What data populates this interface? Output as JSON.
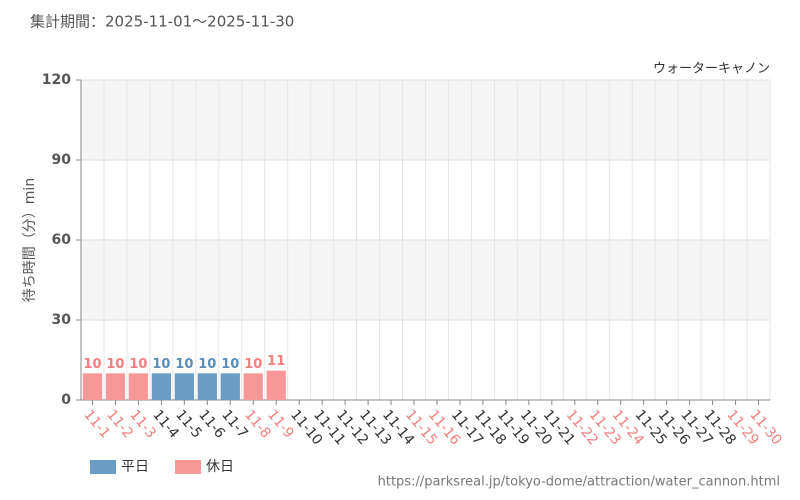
{
  "chart_data": {
    "type": "bar",
    "title": "集計期間：2025-11-01～2025-11-30",
    "subtitle": "ウォーターキャノン",
    "y_label": "待ち時間（分）min",
    "source": "https://parksreal.jp/tokyo-dome/attraction/water_cannon.html",
    "categories": [
      "11-1",
      "11-2",
      "11-3",
      "11-4",
      "11-5",
      "11-6",
      "11-7",
      "11-8",
      "11-9",
      "11-10",
      "11-11",
      "11-12",
      "11-13",
      "11-14",
      "11-15",
      "11-16",
      "11-17",
      "11-18",
      "11-19",
      "11-20",
      "11-21",
      "11-22",
      "11-23",
      "11-24",
      "11-25",
      "11-26",
      "11-27",
      "11-28",
      "11-29",
      "11-30"
    ],
    "category_label_colors": [
      "#f08080",
      "#f08080",
      "#f08080",
      "#333333",
      "#333333",
      "#333333",
      "#333333",
      "#f08080",
      "#f08080",
      "#333333",
      "#333333",
      "#333333",
      "#333333",
      "#333333",
      "#f08080",
      "#f08080",
      "#333333",
      "#333333",
      "#333333",
      "#333333",
      "#333333",
      "#f08080",
      "#f08080",
      "#f08080",
      "#333333",
      "#333333",
      "#333333",
      "#333333",
      "#f08080",
      "#f08080"
    ],
    "series": [
      {
        "name": "平日",
        "color": "#6a9cc4",
        "label_color": "#5b8db8",
        "values": [
          null,
          null,
          null,
          10,
          10,
          10,
          10,
          null,
          null,
          null,
          null,
          null,
          null,
          null,
          null,
          null,
          null,
          null,
          null,
          null,
          null,
          null,
          null,
          null,
          null,
          null,
          null,
          null,
          null,
          null
        ]
      },
      {
        "name": "休日",
        "color": "#f79797",
        "label_color": "#f08080",
        "values": [
          10,
          10,
          10,
          null,
          null,
          null,
          null,
          10,
          11,
          null,
          null,
          null,
          null,
          null,
          null,
          null,
          null,
          null,
          null,
          null,
          null,
          null,
          null,
          null,
          null,
          null,
          null,
          null,
          null,
          null
        ]
      }
    ],
    "ylim": [
      0,
      120
    ],
    "yticks": [
      0,
      30,
      60,
      90,
      120
    ],
    "grid": true
  }
}
